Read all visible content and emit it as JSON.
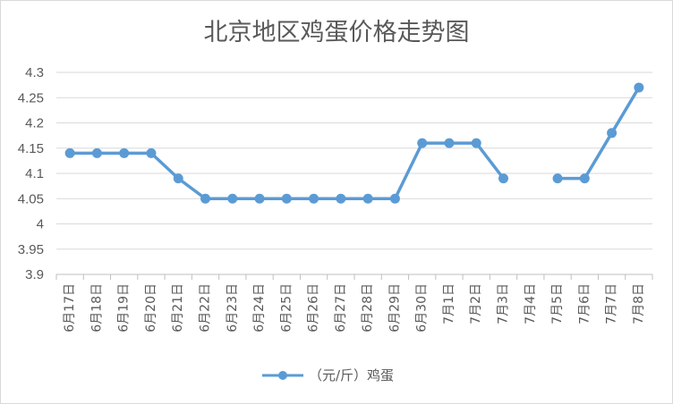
{
  "chart_data": {
    "type": "line",
    "title": "北京地区鸡蛋价格走势图",
    "categories": [
      "6月17日",
      "6月18日",
      "6月19日",
      "6月20日",
      "6月21日",
      "6月22日",
      "6月23日",
      "6月24日",
      "6月25日",
      "6月26日",
      "6月27日",
      "6月28日",
      "6月29日",
      "6月30日",
      "7月1日",
      "7月2日",
      "7月3日",
      "7月4日",
      "7月5日",
      "7月6日",
      "7月7日",
      "7月8日"
    ],
    "series": [
      {
        "name": "（元/斤）鸡蛋",
        "values": [
          4.14,
          4.14,
          4.14,
          4.14,
          4.09,
          4.05,
          4.05,
          4.05,
          4.05,
          4.05,
          4.05,
          4.05,
          4.05,
          4.16,
          4.16,
          4.16,
          4.09,
          null,
          4.09,
          4.09,
          4.18,
          4.27
        ],
        "color": "#5b9bd5"
      }
    ],
    "ylim": [
      3.9,
      4.3
    ],
    "yticks": [
      "3.9",
      "3.95",
      "4",
      "4.05",
      "4.1",
      "4.15",
      "4.2",
      "4.25",
      "4.3"
    ],
    "grid": true,
    "legend_position": "bottom"
  }
}
